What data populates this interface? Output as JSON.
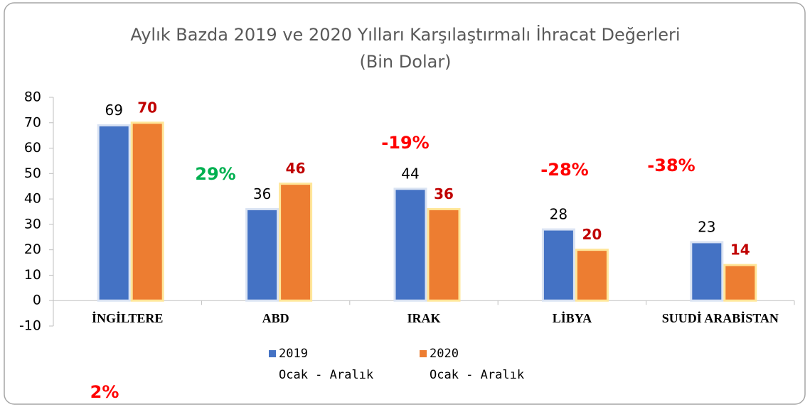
{
  "chart_data": {
    "type": "bar",
    "title": "Aylık Bazda 2019 ve 2020 Yılları Karşılaştırmalı İhracat Değerleri",
    "subtitle": "(Bin Dolar)",
    "categories": [
      "İNGİLTERE",
      "ABD",
      "IRAK",
      "LİBYA",
      "SUUDİ ARABİSTAN"
    ],
    "series": [
      {
        "name": "2019\nOcak - Aralık",
        "color": "#4472c4",
        "values": [
          69,
          36,
          44,
          28,
          23
        ]
      },
      {
        "name": "2020\nOcak - Aralık",
        "color": "#ed7d31",
        "values": [
          70,
          46,
          36,
          20,
          14
        ]
      }
    ],
    "ylim": [
      -10,
      80
    ],
    "yticks": [
      -10,
      0,
      10,
      20,
      30,
      40,
      50,
      60,
      70,
      80
    ],
    "annotations": [
      {
        "text": "2%",
        "color": "#ff0000"
      },
      {
        "text": "29%",
        "color": "#00b050"
      },
      {
        "text": "-19%",
        "color": "#ff0000"
      },
      {
        "text": "-28%",
        "color": "#ff0000"
      },
      {
        "text": "-38%",
        "color": "#ff0000"
      }
    ]
  }
}
